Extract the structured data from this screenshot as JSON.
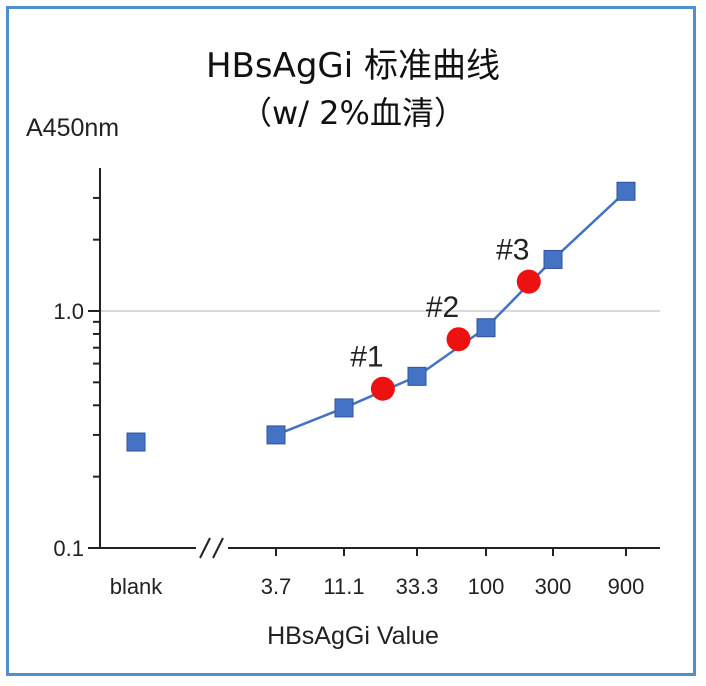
{
  "chart_data": {
    "type": "line",
    "title": "HBsAgGi 标准曲线",
    "subtitle": "（w/ 2%血清）",
    "ylabel": "A450nm",
    "xlabel": "HBsAgGi Value",
    "yscale": "log",
    "ylim": [
      0.1,
      3.5
    ],
    "yticks": [
      {
        "value": 0.1,
        "label": "0.1"
      },
      {
        "value": 1.0,
        "label": "1.0"
      }
    ],
    "grid": "horizontal line at 1.0",
    "categories": [
      "blank",
      "3.7",
      "11.1",
      "33.3",
      "100",
      "300",
      "900"
    ],
    "axis_break": "//",
    "series": [
      {
        "values": [
          0.28,
          0.3,
          0.39,
          0.53,
          0.85,
          1.65,
          3.2
        ],
        "color": "#4472c4",
        "marker": "square"
      },
      {
        "x": [
          20,
          66,
          200
        ],
        "values": [
          0.47,
          0.76,
          1.33
        ],
        "color": "#ee1111",
        "marker": "circle",
        "labels": [
          "#1",
          "#2",
          "#3"
        ]
      }
    ]
  }
}
